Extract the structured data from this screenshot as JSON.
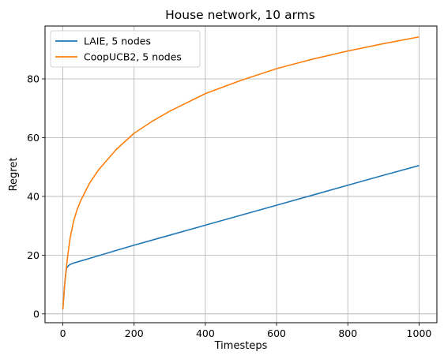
{
  "chart_data": {
    "type": "line",
    "title": "House network, 10 arms",
    "xlabel": "Timesteps",
    "ylabel": "Regret",
    "xlim": [
      -50,
      1050
    ],
    "ylim": [
      -3,
      98
    ],
    "xticks": [
      0,
      200,
      400,
      600,
      800,
      1000
    ],
    "yticks": [
      0,
      20,
      40,
      60,
      80
    ],
    "grid": true,
    "legend_position": "top-left",
    "series": [
      {
        "name": "LAIE, 5 nodes",
        "color": "#1f77b4",
        "x": [
          0,
          5,
          10,
          15,
          20,
          30,
          50,
          75,
          100,
          150,
          200,
          300,
          400,
          500,
          600,
          700,
          800,
          900,
          1000
        ],
        "y": [
          1.5,
          10,
          15.5,
          16.3,
          16.8,
          17.3,
          18,
          18.9,
          19.8,
          21.6,
          23.4,
          26.8,
          30.2,
          33.6,
          37,
          40.4,
          43.8,
          47.2,
          50.5
        ]
      },
      {
        "name": "CoopUCB2, 5 nodes",
        "color": "#ff7f0e",
        "x": [
          0,
          5,
          10,
          15,
          20,
          30,
          40,
          50,
          75,
          100,
          150,
          200,
          250,
          300,
          400,
          500,
          600,
          700,
          800,
          900,
          1000
        ],
        "y": [
          1.5,
          10,
          16,
          21,
          25.5,
          31.5,
          35.5,
          38.5,
          44.5,
          49,
          56,
          61.5,
          65.5,
          69,
          75,
          79.5,
          83.5,
          86.7,
          89.5,
          92,
          94.3
        ]
      }
    ]
  }
}
